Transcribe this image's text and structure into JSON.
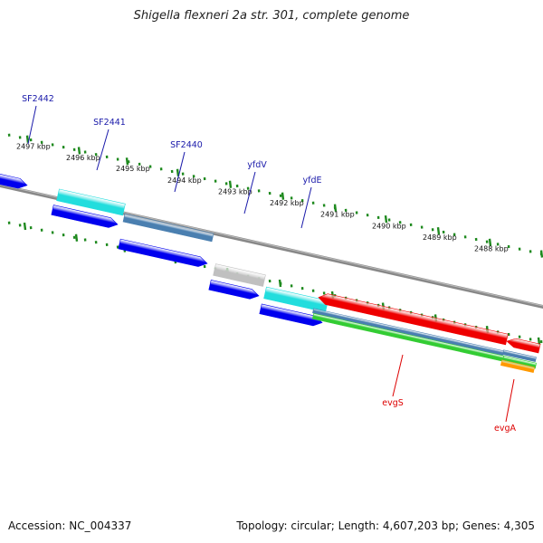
{
  "title": "Shigella flexneri 2a str. 301, complete genome",
  "footer": {
    "accession": "Accession: NC_004337",
    "summary": "Topology: circular; Length: 4,607,203 bp; Genes: 4,305"
  },
  "colors": {
    "tick": "#1f8a1f",
    "backbone": "#888888",
    "blue": "#0000ee",
    "cyan": "#22dddd",
    "steel": "#4a7fb0",
    "grey": "#c0c0c0",
    "red": "#ee0000",
    "green": "#33cc33",
    "orange": "#ff9900",
    "label_forward": "#1a1aaa",
    "label_reverse": "#dd0000"
  },
  "kbp_labels": [
    "2497 kbp",
    "2496 kbp",
    "2495 kbp",
    "2494 kbp",
    "2493 kbp",
    "2492 kbp",
    "2491 kbp",
    "2490 kbp",
    "2489 kbp",
    "2488 kbp"
  ],
  "gene_labels_forward": [
    "SF2442",
    "SF2441",
    "SF2440",
    "yfdV",
    "yfdE"
  ],
  "gene_labels_reverse": [
    "evgS",
    "evgA"
  ]
}
